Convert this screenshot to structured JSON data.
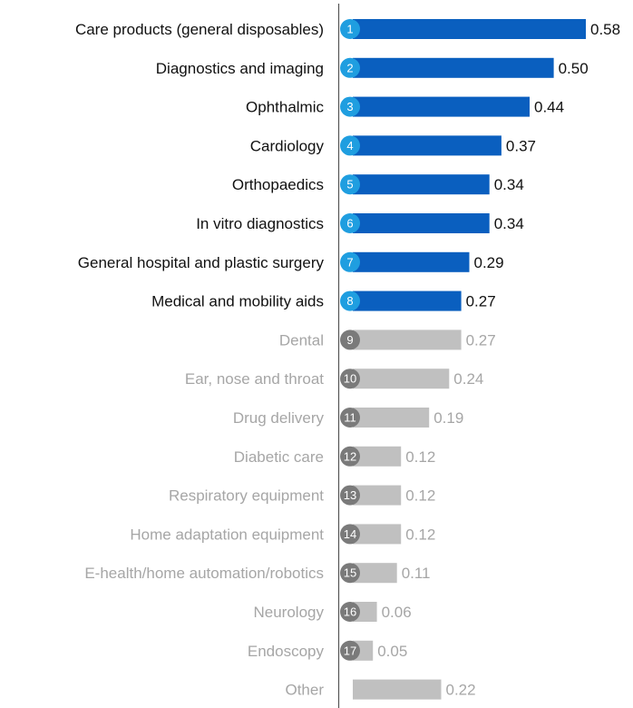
{
  "chart_data": {
    "type": "bar",
    "orientation": "horizontal",
    "categories": [
      "Care products (general disposables)",
      "Diagnostics and imaging",
      "Ophthalmic",
      "Cardiology",
      "Orthopaedics",
      "In vitro diagnostics",
      "General hospital and plastic surgery",
      "Medical and mobility aids",
      "Dental",
      "Ear, nose and throat",
      "Drug delivery",
      "Diabetic care",
      "Respiratory equipment",
      "Home adaptation equipment",
      "E-health/home automation/robotics",
      "Neurology",
      "Endoscopy",
      "Other"
    ],
    "ranks": [
      "1",
      "2",
      "3",
      "4",
      "5",
      "6",
      "7",
      "8",
      "9",
      "10",
      "11",
      "12",
      "13",
      "14",
      "15",
      "16",
      "17",
      ""
    ],
    "values": [
      0.58,
      0.5,
      0.44,
      0.37,
      0.34,
      0.34,
      0.29,
      0.27,
      0.27,
      0.24,
      0.19,
      0.12,
      0.12,
      0.12,
      0.11,
      0.06,
      0.05,
      0.22
    ],
    "value_labels": [
      "0.58",
      "0.50",
      "0.44",
      "0.37",
      "0.34",
      "0.34",
      "0.29",
      "0.27",
      "0.27",
      "0.24",
      "0.19",
      "0.12",
      "0.12",
      "0.12",
      "0.11",
      "0.06",
      "0.05",
      "0.22"
    ],
    "highlighted": [
      true,
      true,
      true,
      true,
      true,
      true,
      true,
      true,
      false,
      false,
      false,
      false,
      false,
      false,
      false,
      false,
      false,
      false
    ],
    "xlim": [
      0,
      0.58
    ],
    "grid": false,
    "legend": "none",
    "title": "",
    "xlabel": "",
    "ylabel": ""
  },
  "colors": {
    "highlight_bar": "#0a5fbf",
    "highlight_badge": "#1f9ee0",
    "muted_bar": "#c0c0c0",
    "muted_badge": "#7a7a7a",
    "highlight_text": "#111111",
    "muted_text": "#a6a6a6",
    "axis": "#555555"
  }
}
